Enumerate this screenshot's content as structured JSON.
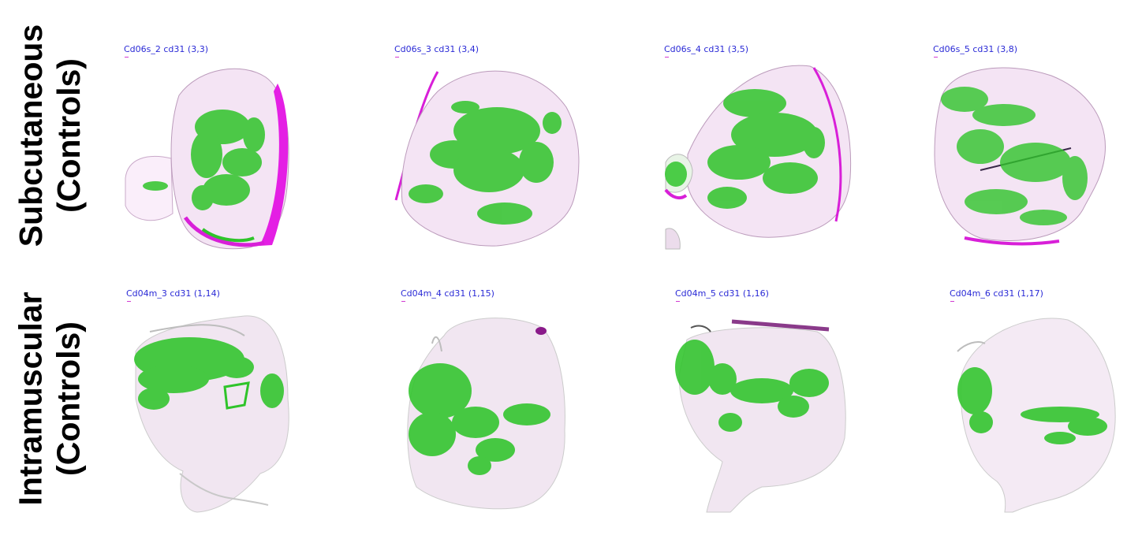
{
  "row_labels": [
    {
      "line1": "Subcutaneous",
      "line2": "(Controls)"
    },
    {
      "line1": "Intramuscular",
      "line2": "(Controls)"
    }
  ],
  "panels": [
    {
      "title": "Cd06s_2 cd31 (3,3)"
    },
    {
      "title": "Cd06s_3 cd31 (3,4)"
    },
    {
      "title": "Cd06s_4 cd31 (3,5)"
    },
    {
      "title": "Cd06s_5 cd31 (3,8)"
    },
    {
      "title": "Cd04m_3 cd31 (1,14)"
    },
    {
      "title": "Cd04m_4 cd31 (1,15)"
    },
    {
      "title": "Cd04m_5 cd31 (1,16)"
    },
    {
      "title": "Cd04m_6 cd31 (1,17)"
    }
  ],
  "colors": {
    "stain_green": "#2fc42a",
    "stain_magenta": "#d81fd8",
    "title_blue": "#2a2ad6"
  }
}
